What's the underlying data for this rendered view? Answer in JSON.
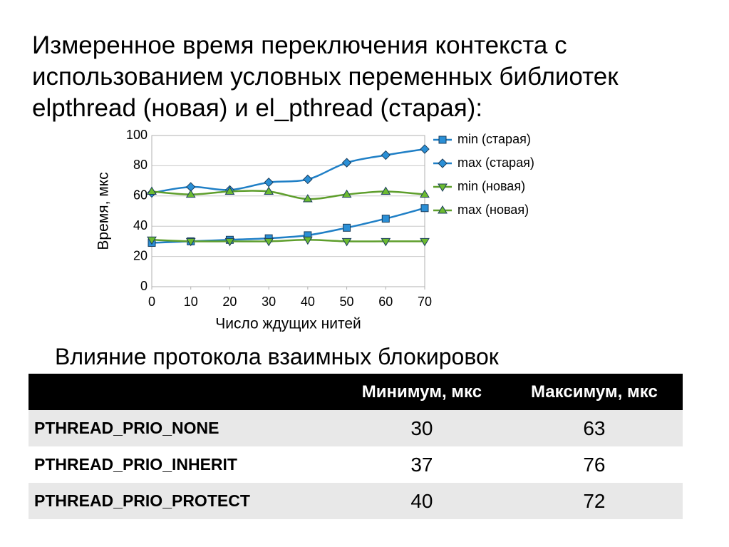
{
  "title": "Измеренное время переключения контекста с использованием условных переменных библиотек elpthread (новая) и el_pthread (старая):",
  "chart_data": {
    "type": "line",
    "x": [
      0,
      10,
      20,
      30,
      40,
      50,
      60,
      70
    ],
    "xlim": [
      0,
      70
    ],
    "xticks": [
      0,
      10,
      20,
      30,
      40,
      50,
      60,
      70
    ],
    "ylim": [
      0,
      100
    ],
    "yticks": [
      0,
      20,
      40,
      60,
      80,
      100
    ],
    "x_label": "Число ждущих нитей",
    "y_label": "Время, мкс",
    "grid": true,
    "legend": "right",
    "series": [
      {
        "name": "min (старая)",
        "color": "#1f7fc6",
        "marker": "square",
        "values": [
          29,
          30,
          31,
          32,
          34,
          39,
          45,
          52
        ]
      },
      {
        "name": "max (старая)",
        "color": "#1f7fc6",
        "marker": "diamond",
        "values": [
          62,
          66,
          64,
          69,
          71,
          82,
          87,
          91
        ]
      },
      {
        "name": "min (новая)",
        "color": "#5e9e2c",
        "marker": "triangle-down",
        "values": [
          31,
          30,
          30,
          30,
          31,
          30,
          30,
          30
        ]
      },
      {
        "name": "max (новая)",
        "color": "#5e9e2c",
        "marker": "triangle-up",
        "values": [
          63,
          61,
          63,
          63,
          58,
          61,
          63,
          61
        ]
      }
    ]
  },
  "table": {
    "title": "Влияние протокола взаимных блокировок",
    "columns": [
      "Минимум, мкс",
      "Максимум, мкс"
    ],
    "rows": [
      [
        "PTHREAD_PRIO_NONE",
        30,
        63
      ],
      [
        "PTHREAD_PRIO_INHERIT",
        37,
        76
      ],
      [
        "PTHREAD_PRIO_PROTECT",
        40,
        72
      ]
    ]
  }
}
